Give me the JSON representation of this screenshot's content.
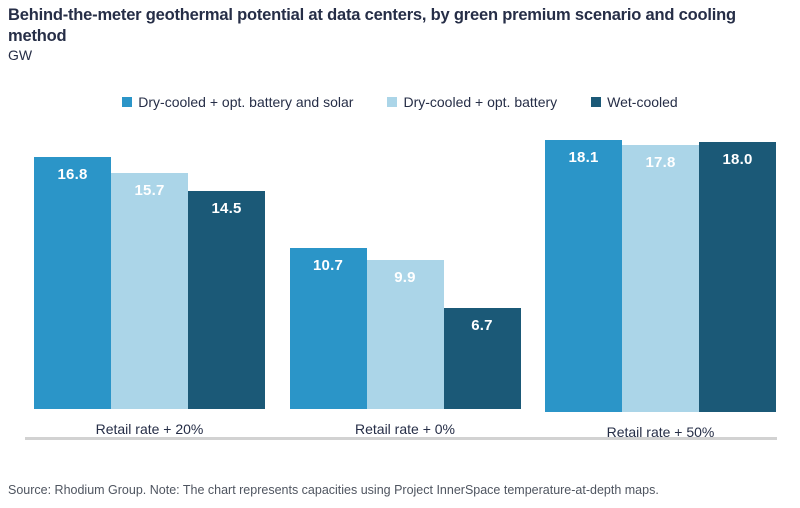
{
  "header": {
    "title": "Behind-the-meter geothermal potential at data centers, by green premium scenario and cooling method",
    "unit": "GW"
  },
  "chart_data": {
    "type": "bar",
    "title": "Behind-the-meter geothermal potential at data centers, by green premium scenario and cooling method",
    "ylabel": "GW",
    "categories": [
      "Retail rate + 20%",
      "Retail rate + 0%",
      "Retail rate + 50%"
    ],
    "series": [
      {
        "name": "Dry-cooled + opt. battery and solar",
        "color": "#2b95c8",
        "values": [
          16.8,
          10.7,
          18.1
        ]
      },
      {
        "name": "Dry-cooled + opt. battery",
        "color": "#abd5e8",
        "values": [
          15.7,
          9.9,
          17.8
        ]
      },
      {
        "name": "Wet-cooled",
        "color": "#1b5977",
        "values": [
          14.5,
          6.7,
          18.0
        ]
      }
    ],
    "value_label_color": "#ffffff",
    "ylim": [
      0,
      19.8
    ],
    "grid": false,
    "legend_position": "top-center",
    "axis_line_color": "#d2d2d2"
  },
  "footer": {
    "source_note": "Source: Rhodium Group. Note: The chart represents capacities using Project InnerSpace temperature-at-depth maps."
  }
}
